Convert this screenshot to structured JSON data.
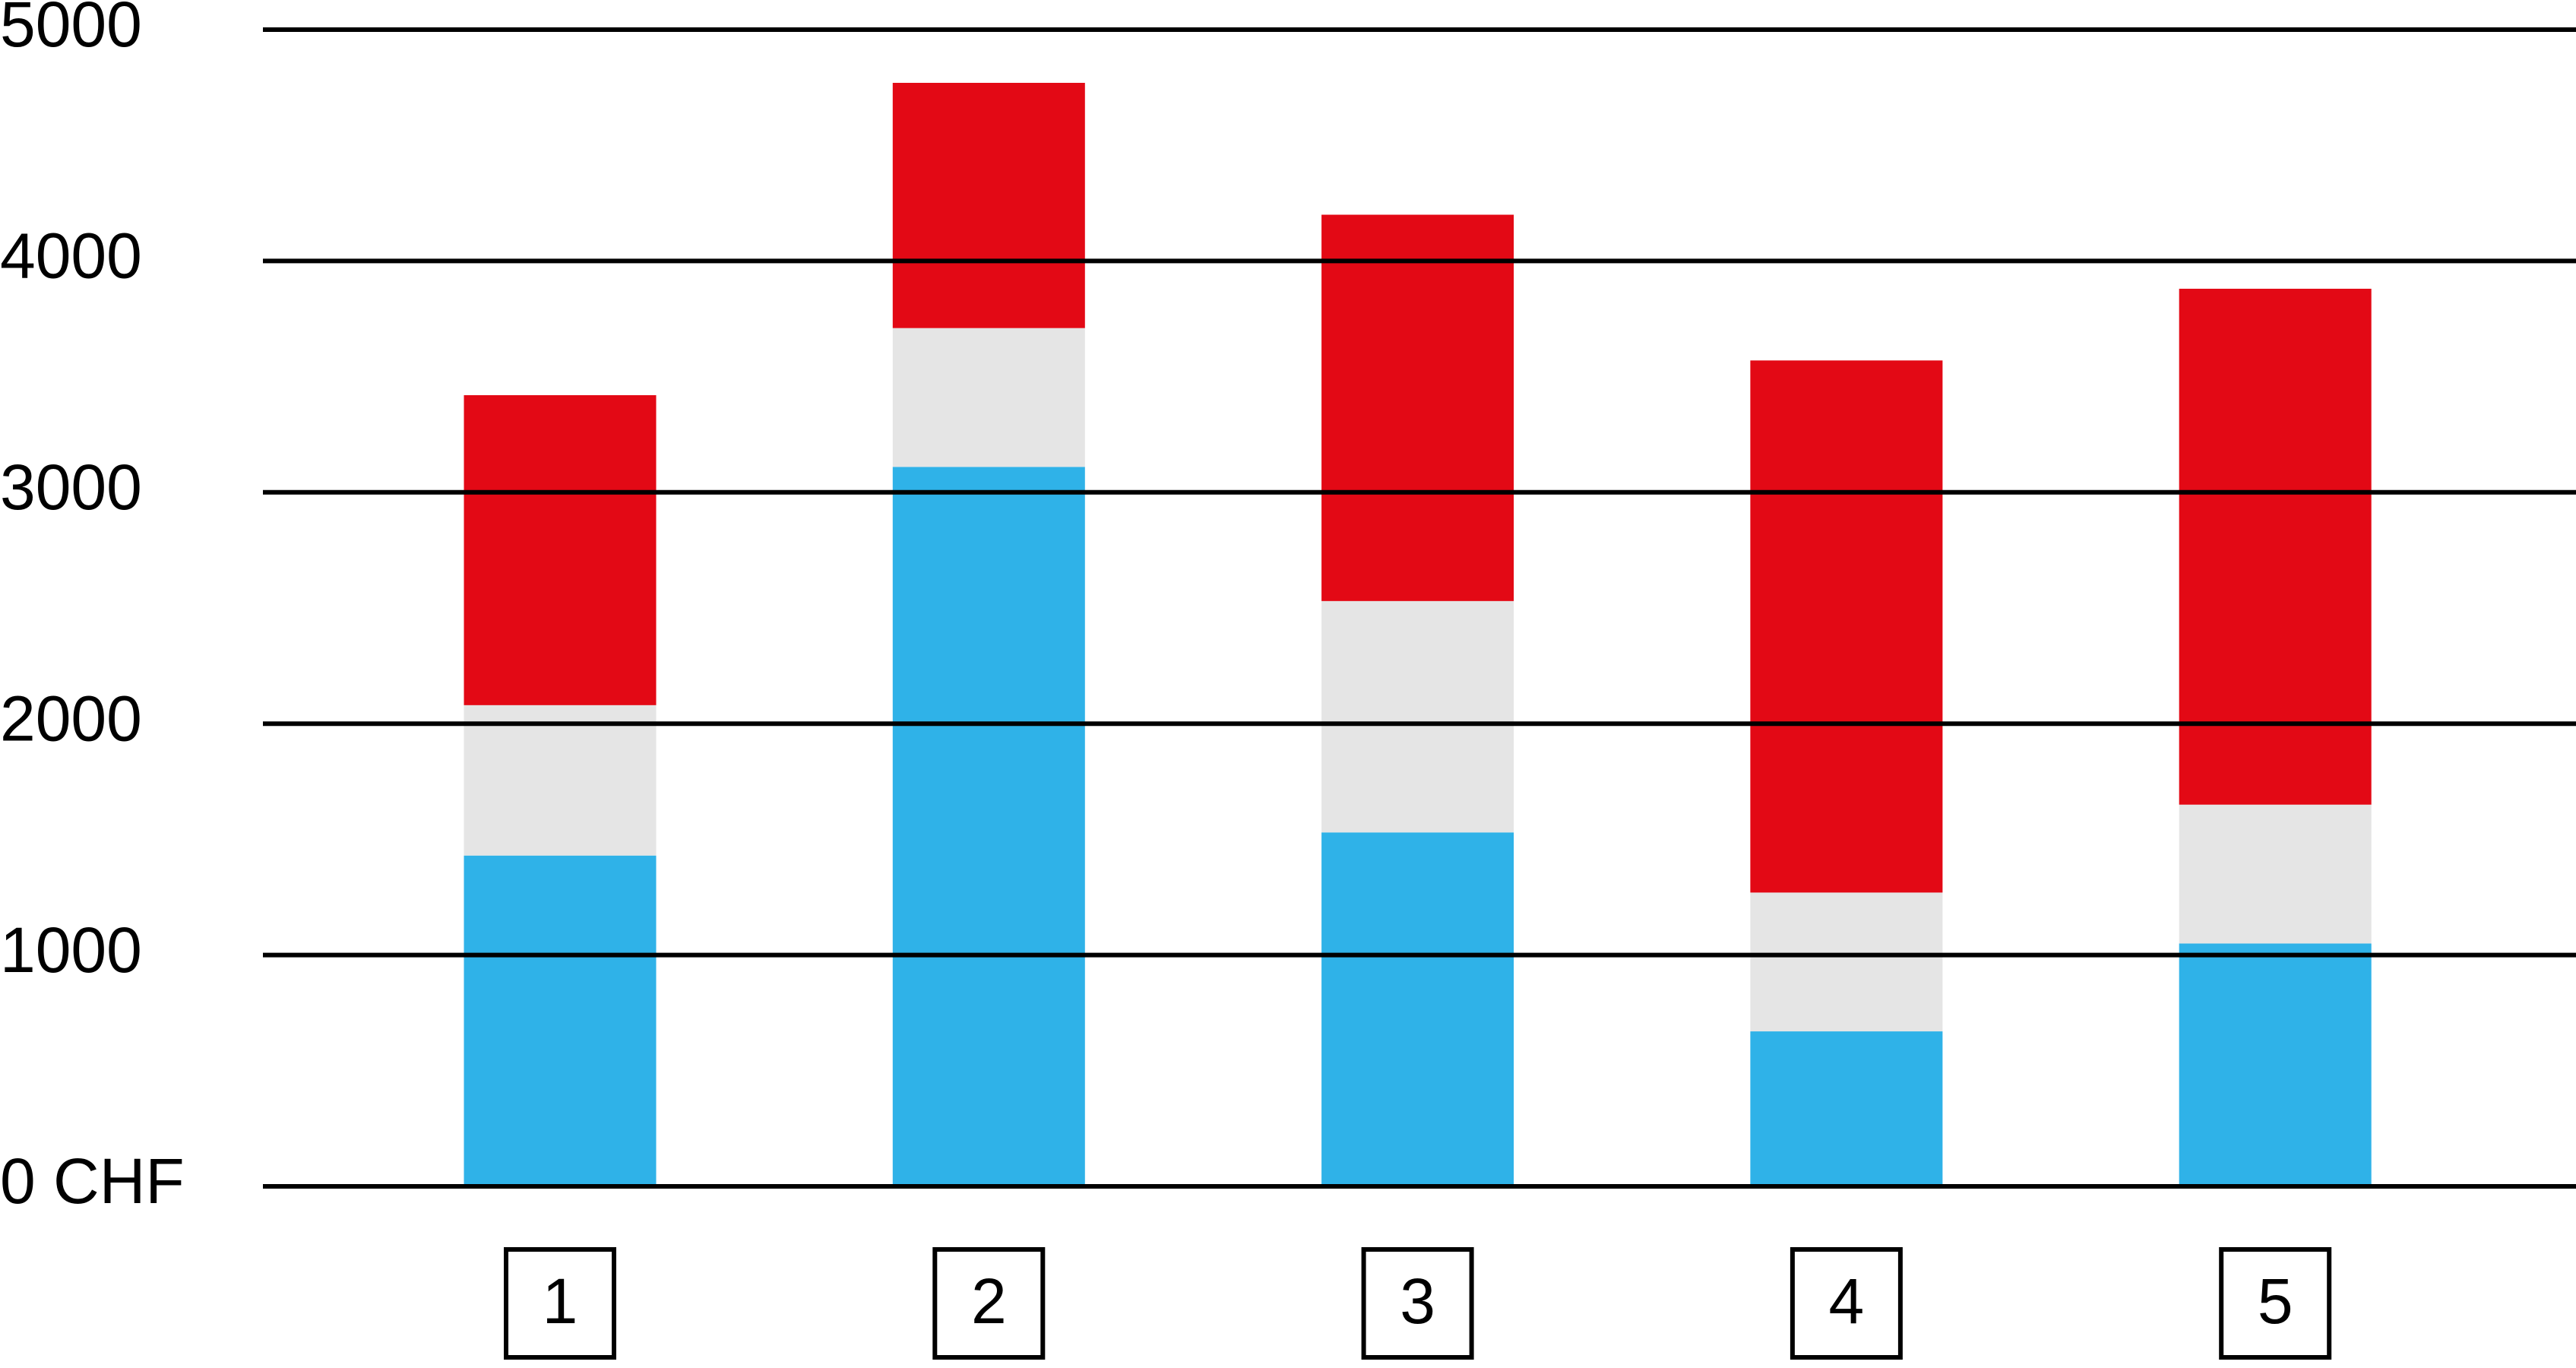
{
  "chart_data": {
    "type": "stacked-bar",
    "categories": [
      "1",
      "2",
      "3",
      "4",
      "5"
    ],
    "series": [
      {
        "color": "#2fb2e8",
        "values": [
          1430,
          3110,
          1530,
          670,
          1050
        ]
      },
      {
        "color": "#e5e5e5",
        "values": [
          650,
          600,
          1000,
          600,
          600
        ]
      },
      {
        "color": "#e30915",
        "values": [
          1340,
          1060,
          1670,
          2300,
          2230
        ]
      }
    ],
    "ylim": [
      0,
      5000
    ],
    "yticks": [
      {
        "value": 0,
        "label": "0 CHF"
      },
      1000,
      2000,
      3000,
      4000,
      5000
    ],
    "grid": true
  }
}
